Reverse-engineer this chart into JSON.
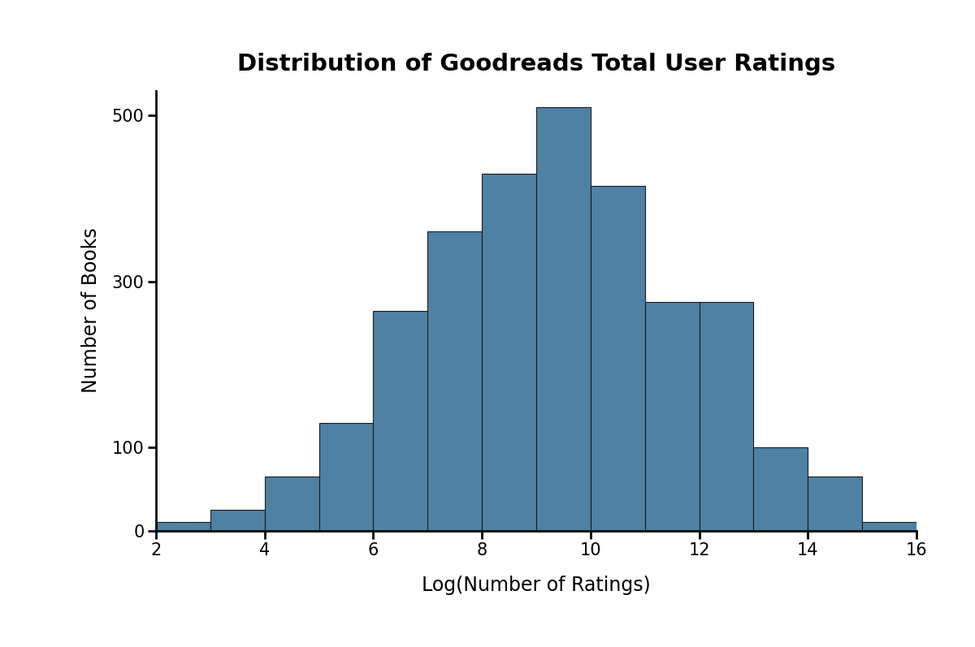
{
  "title": "Distribution of Goodreads Total User Ratings",
  "xlabel": "Log(Number of Ratings)",
  "ylabel": "Number of Books",
  "bar_color": "#4f81a4",
  "bar_edgecolor": "#1a1a1a",
  "background_color": "#ffffff",
  "xlim": [
    2,
    16
  ],
  "ylim": [
    0,
    530
  ],
  "xticks": [
    2,
    4,
    6,
    8,
    10,
    12,
    14,
    16
  ],
  "yticks": [
    0,
    100,
    300,
    500
  ],
  "bin_edges": [
    2,
    3,
    4,
    5,
    6,
    7,
    8,
    9,
    10,
    11,
    12,
    13,
    14,
    15,
    16
  ],
  "bar_heights": [
    10,
    25,
    65,
    130,
    265,
    360,
    430,
    510,
    415,
    275,
    275,
    100,
    65,
    10
  ],
  "title_fontsize": 21,
  "label_fontsize": 17,
  "tick_fontsize": 15,
  "title_fontweight": "bold"
}
